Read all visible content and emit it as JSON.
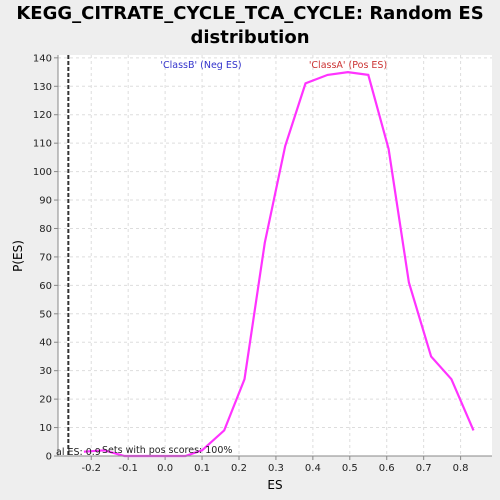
{
  "chart_data": {
    "type": "line",
    "title_line1": "KEGG_CITRATE_CYCLE_TCA_CYCLE: Random ES",
    "title_line2": "distribution",
    "xlabel": "ES",
    "ylabel": "P(ES)",
    "xlim": [
      -0.29,
      0.885
    ],
    "ylim": [
      0,
      141
    ],
    "x_ticks": [
      -0.2,
      -0.1,
      0.0,
      0.1,
      0.2,
      0.3,
      0.4,
      0.5,
      0.6,
      0.7,
      0.8
    ],
    "x_tick_labels": [
      "-0.2",
      "-0.1",
      "0.0",
      "0.1",
      "0.2",
      "0.3",
      "0.4",
      "0.5",
      "0.6",
      "0.7",
      "0.8"
    ],
    "y_ticks": [
      0,
      10,
      20,
      30,
      40,
      50,
      60,
      70,
      80,
      90,
      100,
      110,
      120,
      130,
      140
    ],
    "grid": true,
    "series": [
      {
        "color": "#ff33ff",
        "x": [
          -0.22,
          -0.165,
          -0.11,
          -0.055,
          0.0,
          0.055,
          0.1,
          0.16,
          0.215,
          0.27,
          0.325,
          0.38,
          0.44,
          0.495,
          0.55,
          0.605,
          0.66,
          0.72,
          0.775,
          0.835
        ],
        "y": [
          1.5,
          2,
          0,
          0,
          0,
          0,
          2,
          9,
          27,
          75,
          109,
          131,
          134,
          135,
          134,
          108,
          61,
          35,
          27,
          9
        ]
      }
    ],
    "actual_es_line": {
      "x": -0.262,
      "color": "#333333"
    },
    "annotations": {
      "neg_label": "'ClassB' (Neg ES)",
      "neg_color": "#3333cc",
      "pos_label": "'ClassA' (Pos ES)",
      "pos_color": "#cc3333",
      "actual_es_text": "al ES: 0.9",
      "pos_scores_text": "Sets with pos scores: 100%"
    }
  }
}
